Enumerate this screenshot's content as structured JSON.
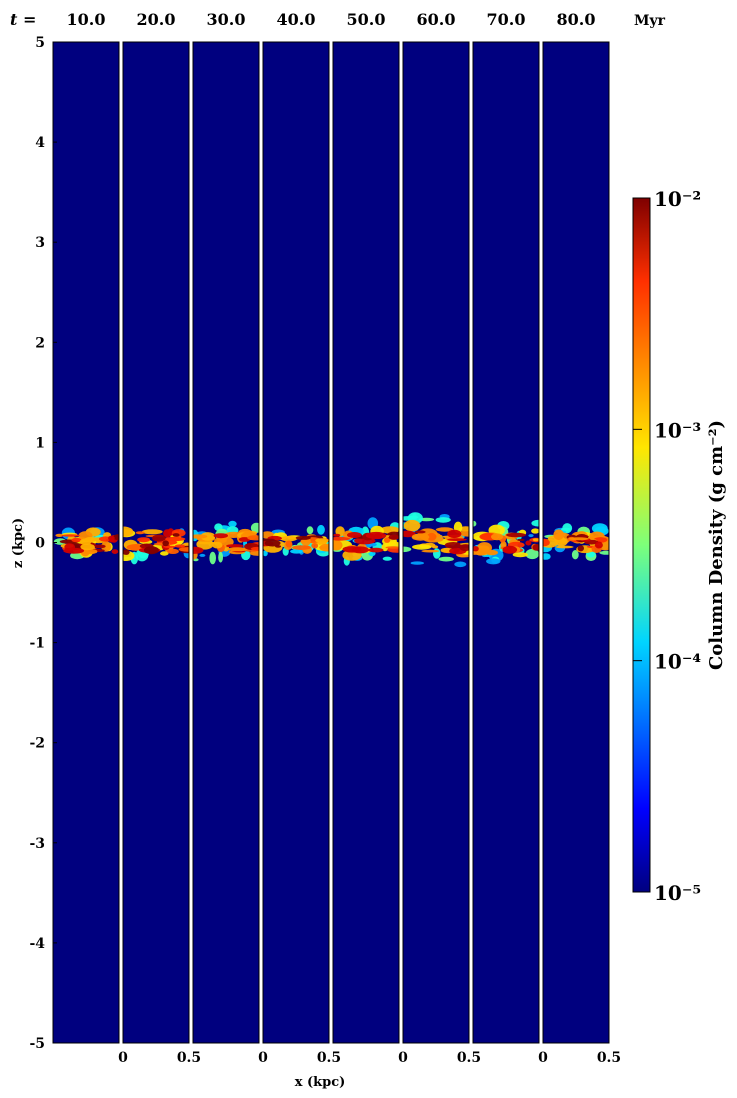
{
  "chart_data": {
    "type": "heatmap",
    "time_prefix": "t =",
    "time_unit": "Myr",
    "times": [
      "10.0",
      "20.0",
      "30.0",
      "40.0",
      "50.0",
      "60.0",
      "70.0",
      "80.0"
    ],
    "xlabel": "x (kpc)",
    "ylabel": "z (kpc)",
    "xlim": [
      0,
      0.5
    ],
    "ylim": [
      -5,
      5
    ],
    "x_ticks": [
      "0",
      "0.5",
      "0",
      "0.5",
      "0",
      "0.5",
      "0",
      "0.5"
    ],
    "y_ticks": [
      "5",
      "4",
      "3",
      "2",
      "1",
      "0",
      "-1",
      "-2",
      "-3",
      "-4",
      "-5"
    ],
    "colorbar": {
      "label": "Column Density (g cm⁻²)",
      "scale": "log",
      "range": [
        1e-05,
        0.01
      ],
      "tick_labels": [
        "10⁻²",
        "10⁻³",
        "10⁻⁴",
        "10⁻⁵"
      ],
      "colormap": "jet",
      "colors": [
        "#00007f",
        "#0000ff",
        "#00d4ff",
        "#7dff7a",
        "#ffe600",
        "#ff4a00",
        "#7f0000"
      ]
    },
    "background_color": "#00007f",
    "disk_layer": {
      "z_center_kpc": 0.0,
      "approx_half_thickness_kpc": [
        0.12,
        0.15,
        0.15,
        0.1,
        0.15,
        0.2,
        0.15,
        0.12
      ],
      "peak_column_density": 0.01
    }
  }
}
